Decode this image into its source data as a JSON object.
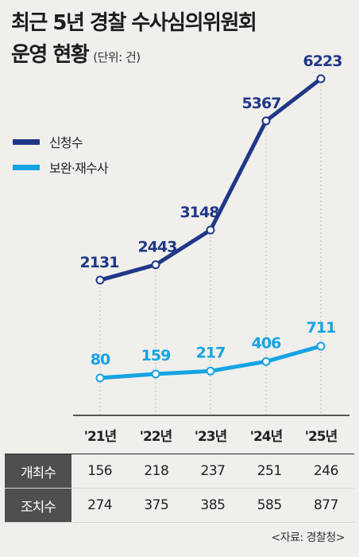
{
  "title": "최근 5년 경찰 수사심의위원회",
  "subtitle": "운영 현황",
  "unit": "(단위: 건)",
  "source": "<자료: 경찰청>",
  "colors": {
    "series1": "#1f3787",
    "series2": "#15a3e3",
    "table_header_bg": "#4f4f4f",
    "background": "#f0efec"
  },
  "chart_data": {
    "type": "line",
    "categories": [
      "'21년",
      "'22년",
      "'23년",
      "'24년",
      "'25년"
    ],
    "series": [
      {
        "name": "신청수",
        "values": [
          2131,
          2443,
          3148,
          5367,
          6223
        ]
      },
      {
        "name": "보완·재수사",
        "values": [
          80,
          159,
          217,
          406,
          711
        ]
      }
    ],
    "legend_position": "top-left",
    "grid": false,
    "xlabel": "",
    "ylabel": "",
    "ylim_series1": [
      0,
      7000
    ],
    "ylim_series2": [
      0,
      2000
    ]
  },
  "table": {
    "rows": [
      {
        "label": "개최수",
        "values": [
          "156",
          "218",
          "237",
          "251",
          "246"
        ]
      },
      {
        "label": "조치수",
        "values": [
          "274",
          "375",
          "385",
          "585",
          "877"
        ]
      }
    ]
  }
}
